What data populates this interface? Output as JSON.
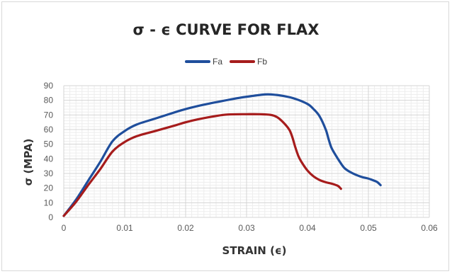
{
  "chart_data": {
    "type": "line",
    "title": "σ - ϵ CURVE FOR FLAX",
    "xlabel": "STRAIN (ϵ)",
    "ylabel": "σ (MPA)",
    "xlim": [
      0,
      0.06
    ],
    "ylim": [
      0,
      90
    ],
    "x_ticks": [
      "0",
      "0.01",
      "0.02",
      "0.03",
      "0.04",
      "0.05",
      "0.06"
    ],
    "y_ticks": [
      "0",
      "10",
      "20",
      "30",
      "40",
      "50",
      "60",
      "70",
      "80",
      "90"
    ],
    "grid": true,
    "legend_position": "top",
    "series": [
      {
        "name": "Fa",
        "color": "#1f4e9c",
        "points": [
          [
            0,
            1
          ],
          [
            0.002,
            12
          ],
          [
            0.004,
            25
          ],
          [
            0.006,
            38
          ],
          [
            0.008,
            52
          ],
          [
            0.01,
            59
          ],
          [
            0.012,
            63.5
          ],
          [
            0.015,
            67.5
          ],
          [
            0.018,
            71.5
          ],
          [
            0.02,
            74
          ],
          [
            0.023,
            77
          ],
          [
            0.026,
            79.5
          ],
          [
            0.029,
            81.8
          ],
          [
            0.031,
            83
          ],
          [
            0.033,
            84
          ],
          [
            0.034,
            84
          ],
          [
            0.036,
            83
          ],
          [
            0.038,
            81
          ],
          [
            0.04,
            77.5
          ],
          [
            0.041,
            74
          ],
          [
            0.042,
            69
          ],
          [
            0.043,
            60
          ],
          [
            0.0435,
            53
          ],
          [
            0.044,
            47
          ],
          [
            0.045,
            40
          ],
          [
            0.046,
            34
          ],
          [
            0.047,
            31
          ],
          [
            0.048,
            29
          ],
          [
            0.049,
            27.5
          ],
          [
            0.05,
            26.5
          ],
          [
            0.051,
            25
          ],
          [
            0.0515,
            24
          ],
          [
            0.052,
            22
          ]
        ]
      },
      {
        "name": "Fb",
        "color": "#a61c1c",
        "points": [
          [
            0,
            1
          ],
          [
            0.002,
            10.5
          ],
          [
            0.004,
            22
          ],
          [
            0.006,
            33
          ],
          [
            0.008,
            45
          ],
          [
            0.01,
            51.5
          ],
          [
            0.012,
            55.5
          ],
          [
            0.015,
            59
          ],
          [
            0.018,
            62.5
          ],
          [
            0.02,
            65
          ],
          [
            0.022,
            67
          ],
          [
            0.025,
            69.3
          ],
          [
            0.027,
            70.3
          ],
          [
            0.03,
            70.5
          ],
          [
            0.032,
            70.5
          ],
          [
            0.034,
            70
          ],
          [
            0.035,
            68.5
          ],
          [
            0.036,
            65
          ],
          [
            0.037,
            60
          ],
          [
            0.0375,
            55
          ],
          [
            0.038,
            48
          ],
          [
            0.0385,
            42
          ],
          [
            0.039,
            38
          ],
          [
            0.04,
            32
          ],
          [
            0.041,
            28
          ],
          [
            0.042,
            25.5
          ],
          [
            0.043,
            24
          ],
          [
            0.044,
            23
          ],
          [
            0.045,
            21.5
          ],
          [
            0.0455,
            19.5
          ]
        ]
      }
    ]
  }
}
